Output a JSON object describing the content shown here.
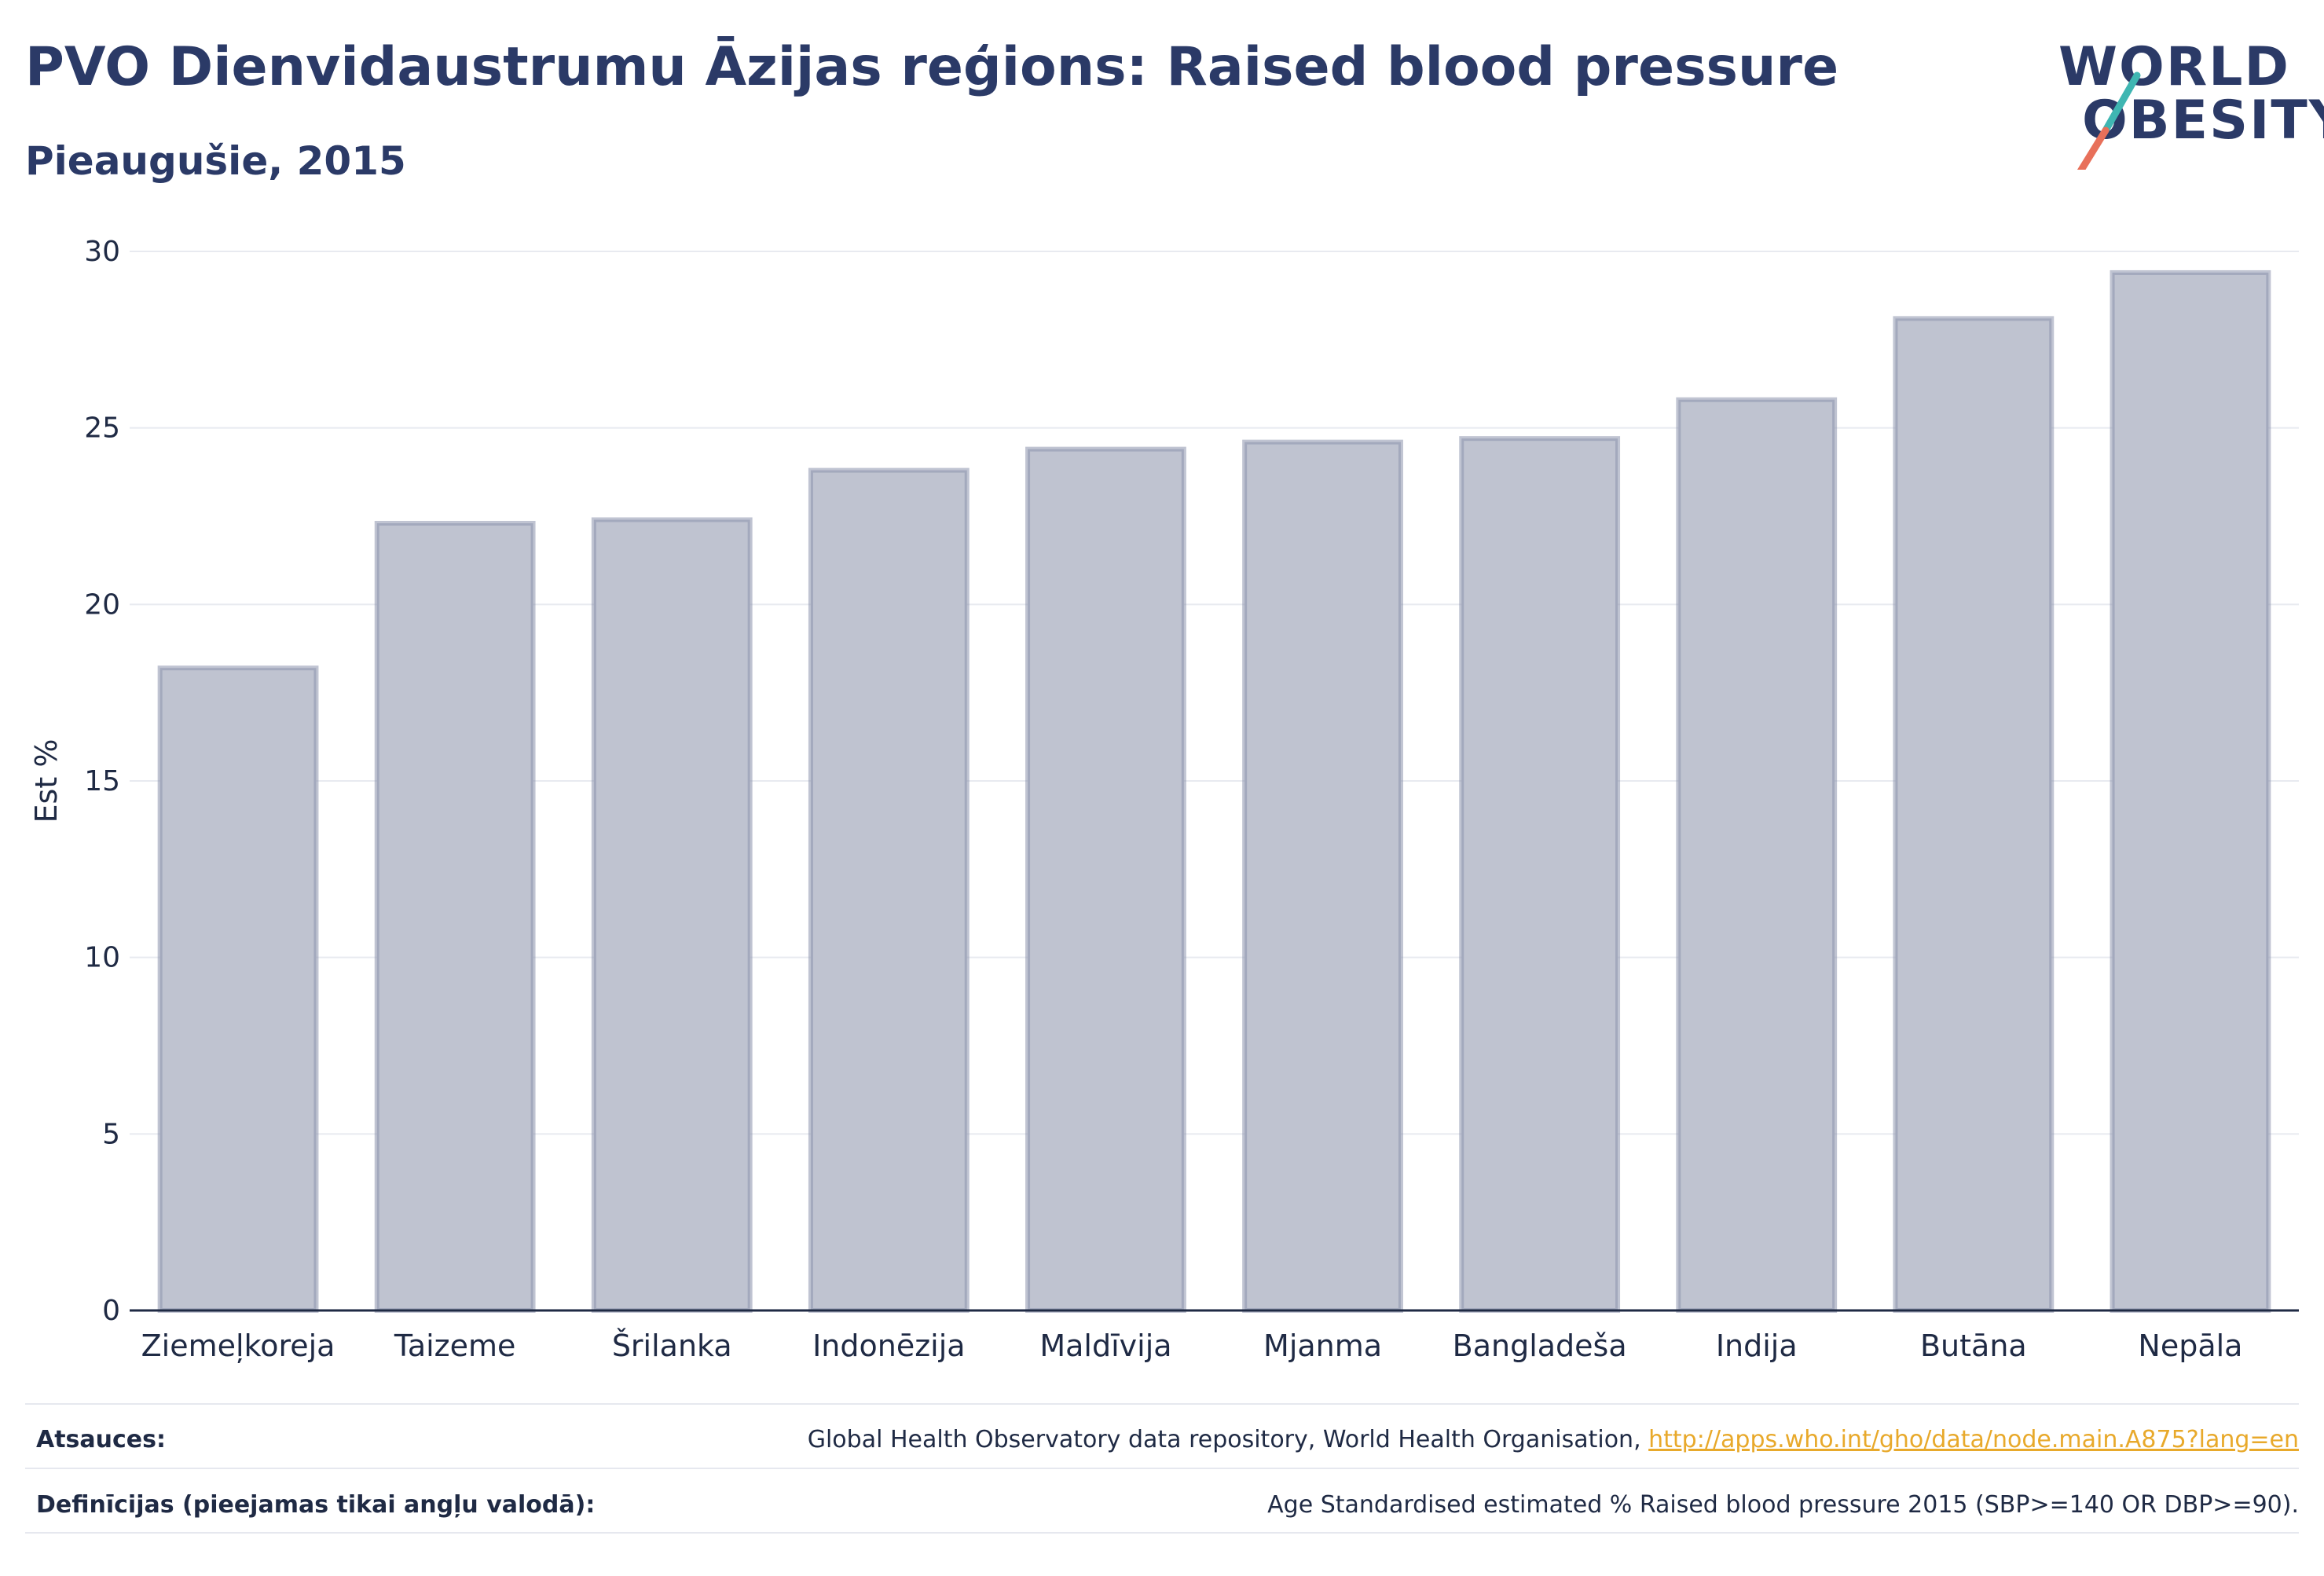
{
  "header": {
    "title": "PVO Dienvidaustrumu Āzijas reģions: Raised blood pressure",
    "subtitle": "Pieaugušie, 2015"
  },
  "logo": {
    "line1": "WORLD",
    "line2": "OBESITY",
    "accent_colors": [
      "#3fb6b2",
      "#e8705a"
    ]
  },
  "colors": {
    "bar_fill": "#bfc3d0",
    "bar_stroke": "#8d93ad",
    "grid": "#e8eaf0",
    "axis": "#1f2a44",
    "link": "#e8a92b"
  },
  "chart_data": {
    "type": "bar",
    "categories": [
      "Ziemeļkoreja",
      "Taizeme",
      "Šrilanka",
      "Indonēzija",
      "Maldīvija",
      "Mjanma",
      "Bangladeša",
      "Indija",
      "Butāna",
      "Nepāla"
    ],
    "values": [
      18.2,
      22.3,
      22.4,
      23.8,
      24.4,
      24.6,
      24.7,
      25.8,
      28.1,
      29.4
    ],
    "ylabel": "Est %",
    "ylim": [
      0,
      30
    ],
    "yticks": [
      0,
      5,
      10,
      15,
      20,
      25,
      30
    ],
    "grid": true
  },
  "footer": {
    "sources_label": "Atsauces:",
    "sources_text": "Global Health Observatory data repository, World Health Organisation, ",
    "sources_link": "http://apps.who.int/gho/data/node.main.A875?lang=en",
    "definitions_label": "Definīcijas (pieejamas tikai angļu valodā):",
    "definitions_text": "Age Standardised estimated % Raised blood pressure 2015 (SBP>=140 OR DBP>=90)."
  }
}
